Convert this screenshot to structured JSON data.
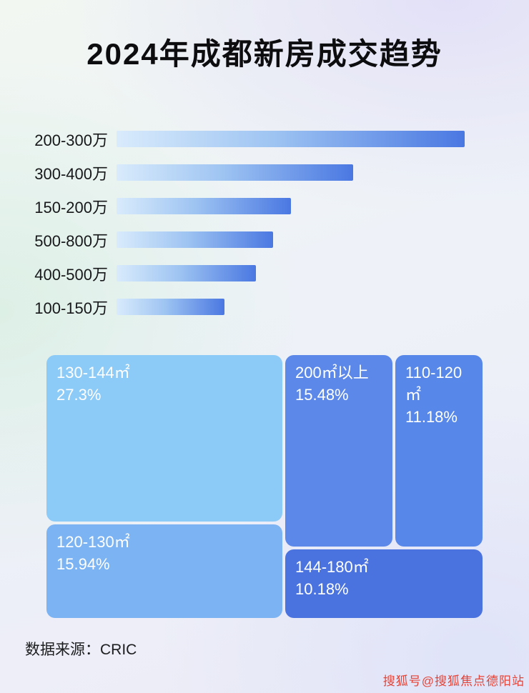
{
  "page": {
    "title": "2024年成都新房成交趋势",
    "source_label": "数据来源：CRIC",
    "watermark": "搜狐号@搜狐焦点德阳站"
  },
  "colors": {
    "bar_gradient_start": "#d9ebfc",
    "bar_gradient_end": "#4a78e2",
    "treemap_blocks": [
      "#8ccaf7",
      "#5b88e9",
      "#5687e9",
      "#7cb3f2",
      "#4b73e0"
    ],
    "watermark_text": "#e2453a"
  },
  "chart_data": [
    {
      "type": "bar",
      "orientation": "horizontal",
      "title": "2024年成都新房成交趋势",
      "categories": [
        "200-300万",
        "300-400万",
        "150-200万",
        "500-800万",
        "400-500万",
        "100-150万"
      ],
      "values": [
        100,
        68,
        50,
        45,
        40,
        31
      ],
      "value_note": "relative bar width in % of longest bar; no numeric axis shown in image",
      "xlabel": "",
      "ylabel": "",
      "grid": false,
      "legend": false
    },
    {
      "type": "treemap",
      "items": [
        {
          "label": "130-144㎡",
          "value": 27.3,
          "display": "27.3%"
        },
        {
          "label": "200㎡以上",
          "value": 15.48,
          "display": "15.48%"
        },
        {
          "label": "110-120㎡",
          "value": 11.18,
          "display": "11.18%"
        },
        {
          "label": "120-130㎡",
          "value": 15.94,
          "display": "15.94%"
        },
        {
          "label": "144-180㎡",
          "value": 10.18,
          "display": "10.18%"
        }
      ],
      "legend": false
    }
  ]
}
